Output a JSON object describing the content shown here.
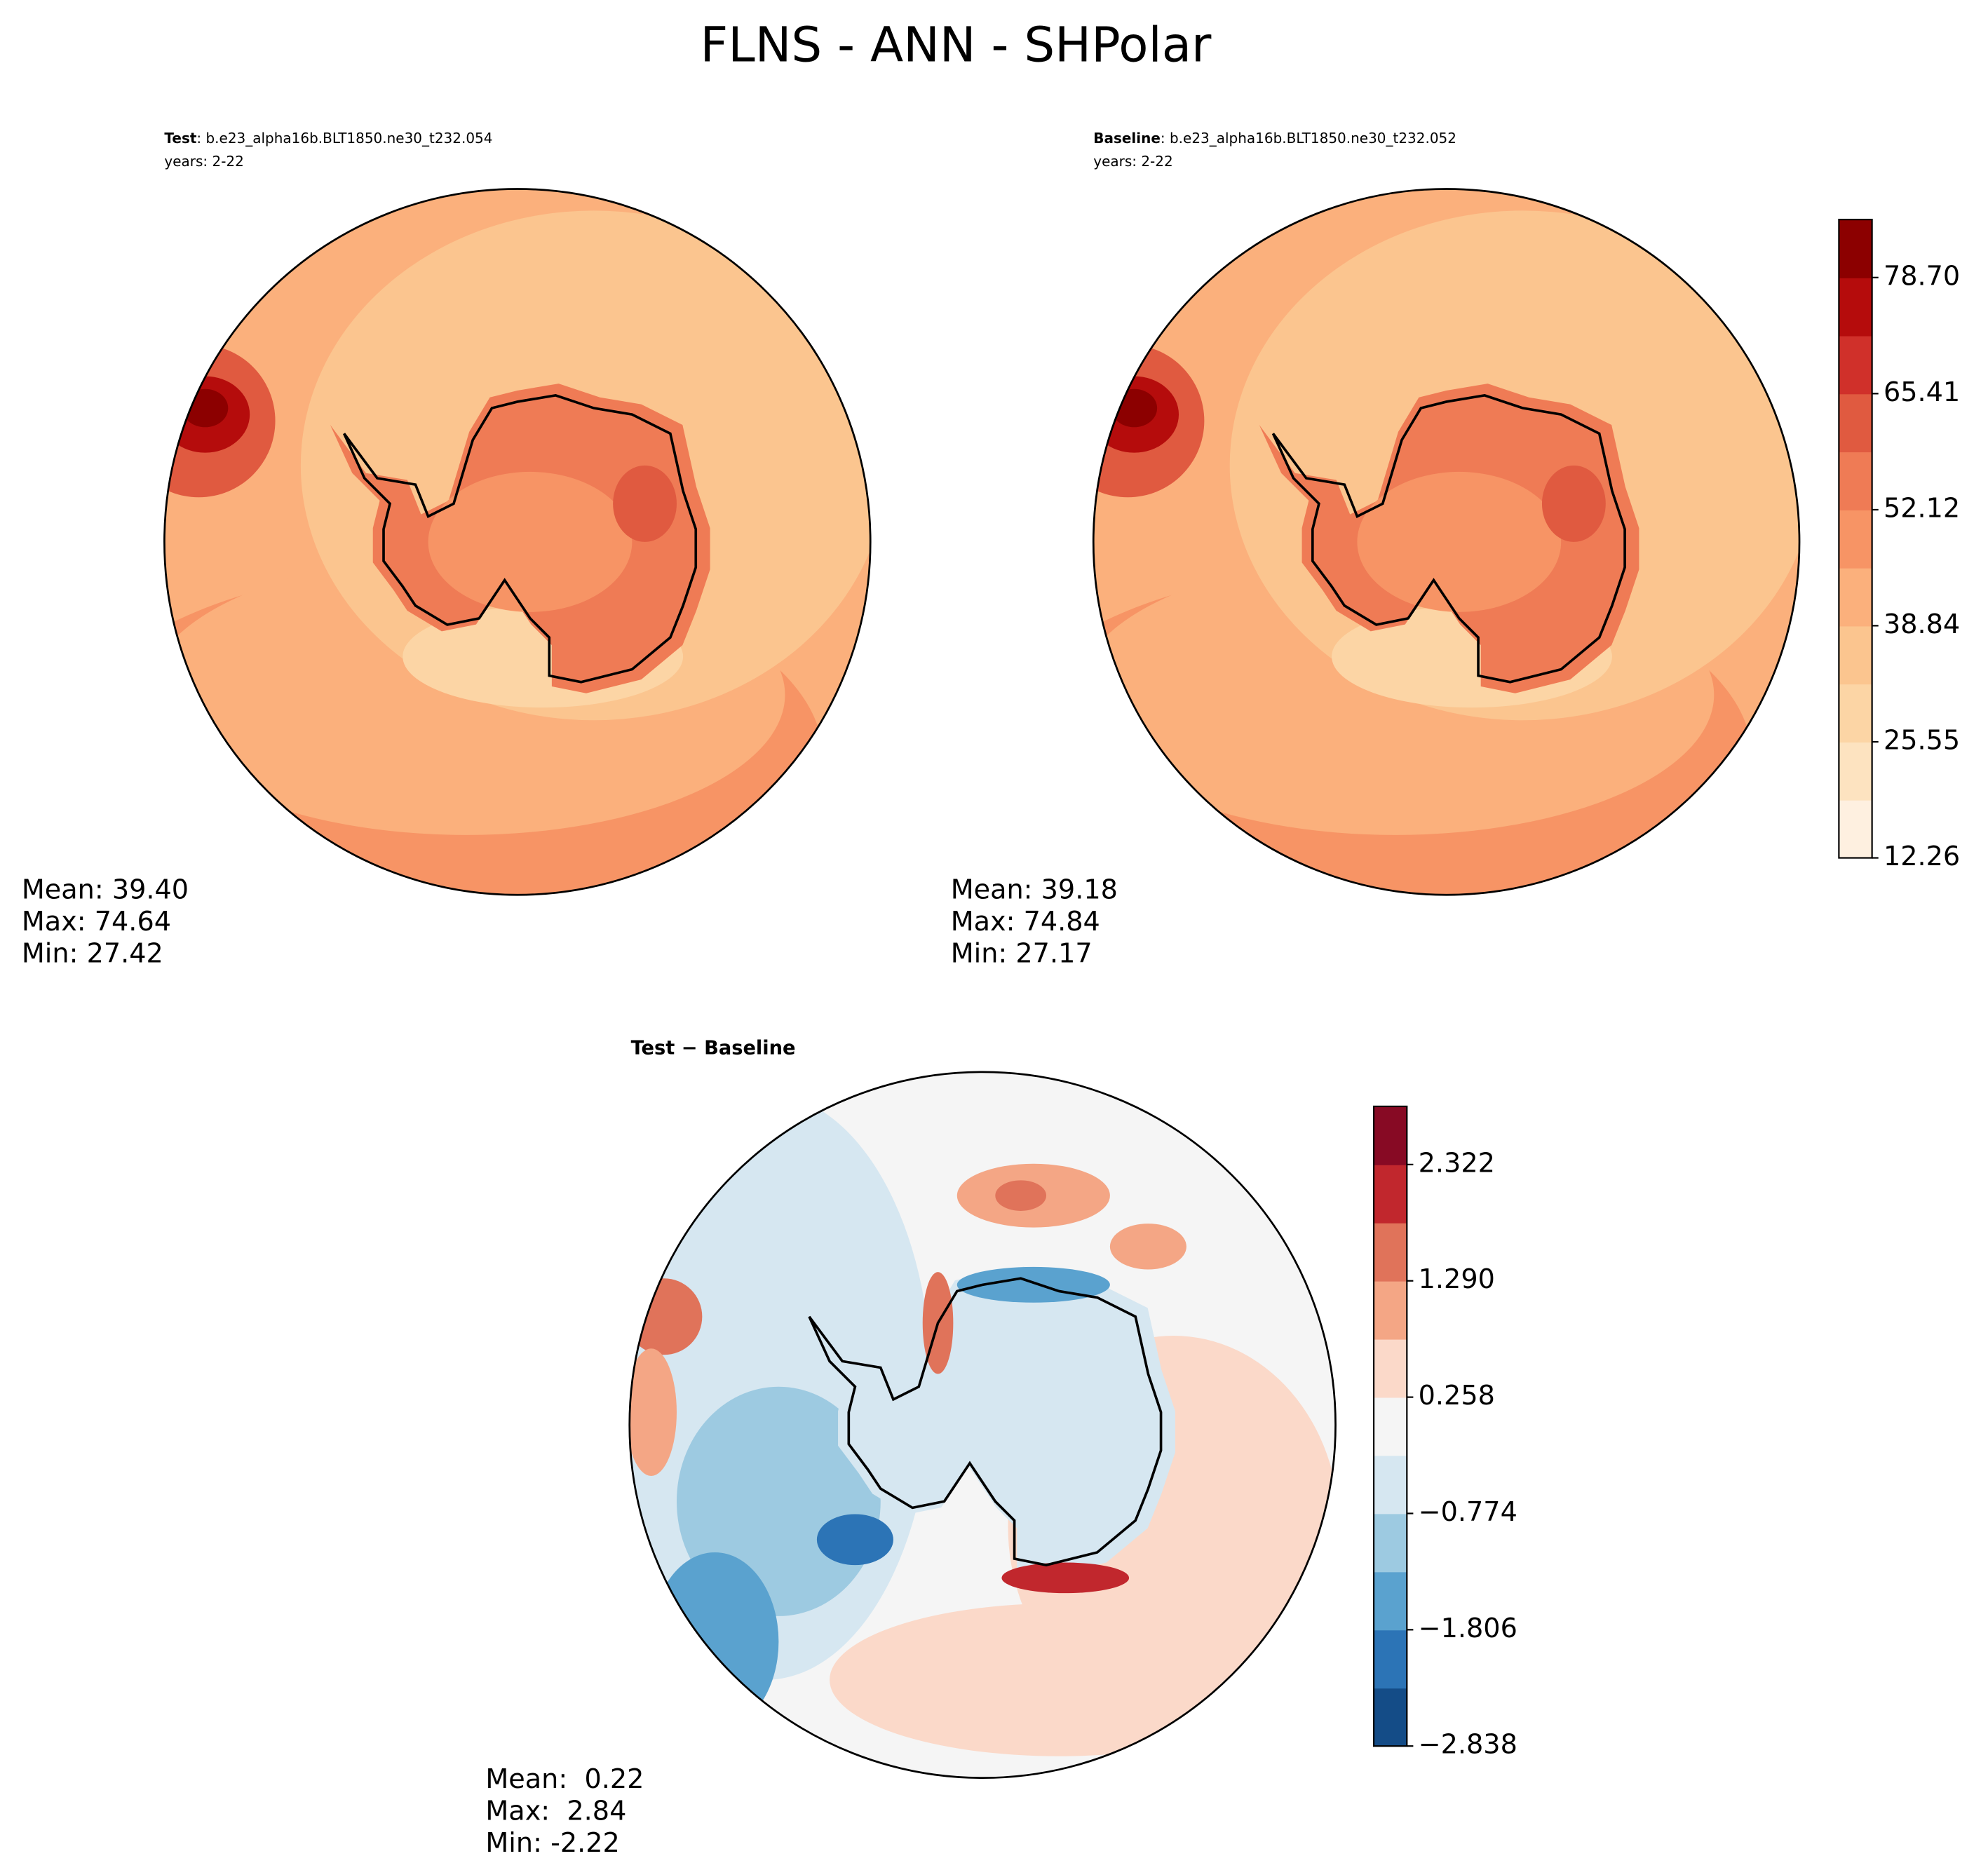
{
  "title": "FLNS - ANN - SHPolar",
  "panels": [
    {
      "label": "Test",
      "case": ": b.e23_alpha16b.BLT1850.ne30_t232.054",
      "years": "years: 2-22",
      "stats": [
        "Mean: 39.40",
        "Max: 74.64",
        "Min: 27.42"
      ]
    },
    {
      "label": "Baseline",
      "case": ": b.e23_alpha16b.BLT1850.ne30_t232.052",
      "years": "years: 2-22",
      "stats": [
        "Mean: 39.18",
        "Max: 74.84",
        "Min: 27.17"
      ]
    },
    {
      "label": "Test − Baseline",
      "stats": [
        "Mean:  0.22",
        "Max:  2.84",
        "Min: -2.22"
      ]
    }
  ],
  "colorbars": [
    {
      "lim": [
        12.26,
        85.34
      ],
      "ticks": [
        12.26,
        25.55,
        38.84,
        52.12,
        65.41,
        {
          "value": 78.7,
          "label": "78.70"
        }
      ],
      "colors": [
        "#fef0e0",
        "#fde3c0",
        "#fcd5a5",
        "#fbc58f",
        "#fbb07c",
        "#f79465",
        "#ef7b55",
        "#e05a40",
        "#d0302a",
        "#b50c0c",
        "#8c0000"
      ]
    },
    {
      "lim": [
        -2.838,
        2.838
      ],
      "ticks": [
        {
          "value": -2.838,
          "label": "−2.838"
        },
        {
          "value": -1.806,
          "label": "−1.806"
        },
        {
          "value": -0.774,
          "label": "−0.774"
        },
        0.258,
        {
          "value": 1.29,
          "label": "1.290"
        },
        2.322
      ],
      "colors": [
        "#144c87",
        "#2c74b6",
        "#5aa2cf",
        "#9dcae1",
        "#d6e7f1",
        "#f5f5f5",
        "#fbd9c9",
        "#f4a685",
        "#e0735a",
        "#c1272d",
        "#870a24"
      ]
    }
  ]
}
